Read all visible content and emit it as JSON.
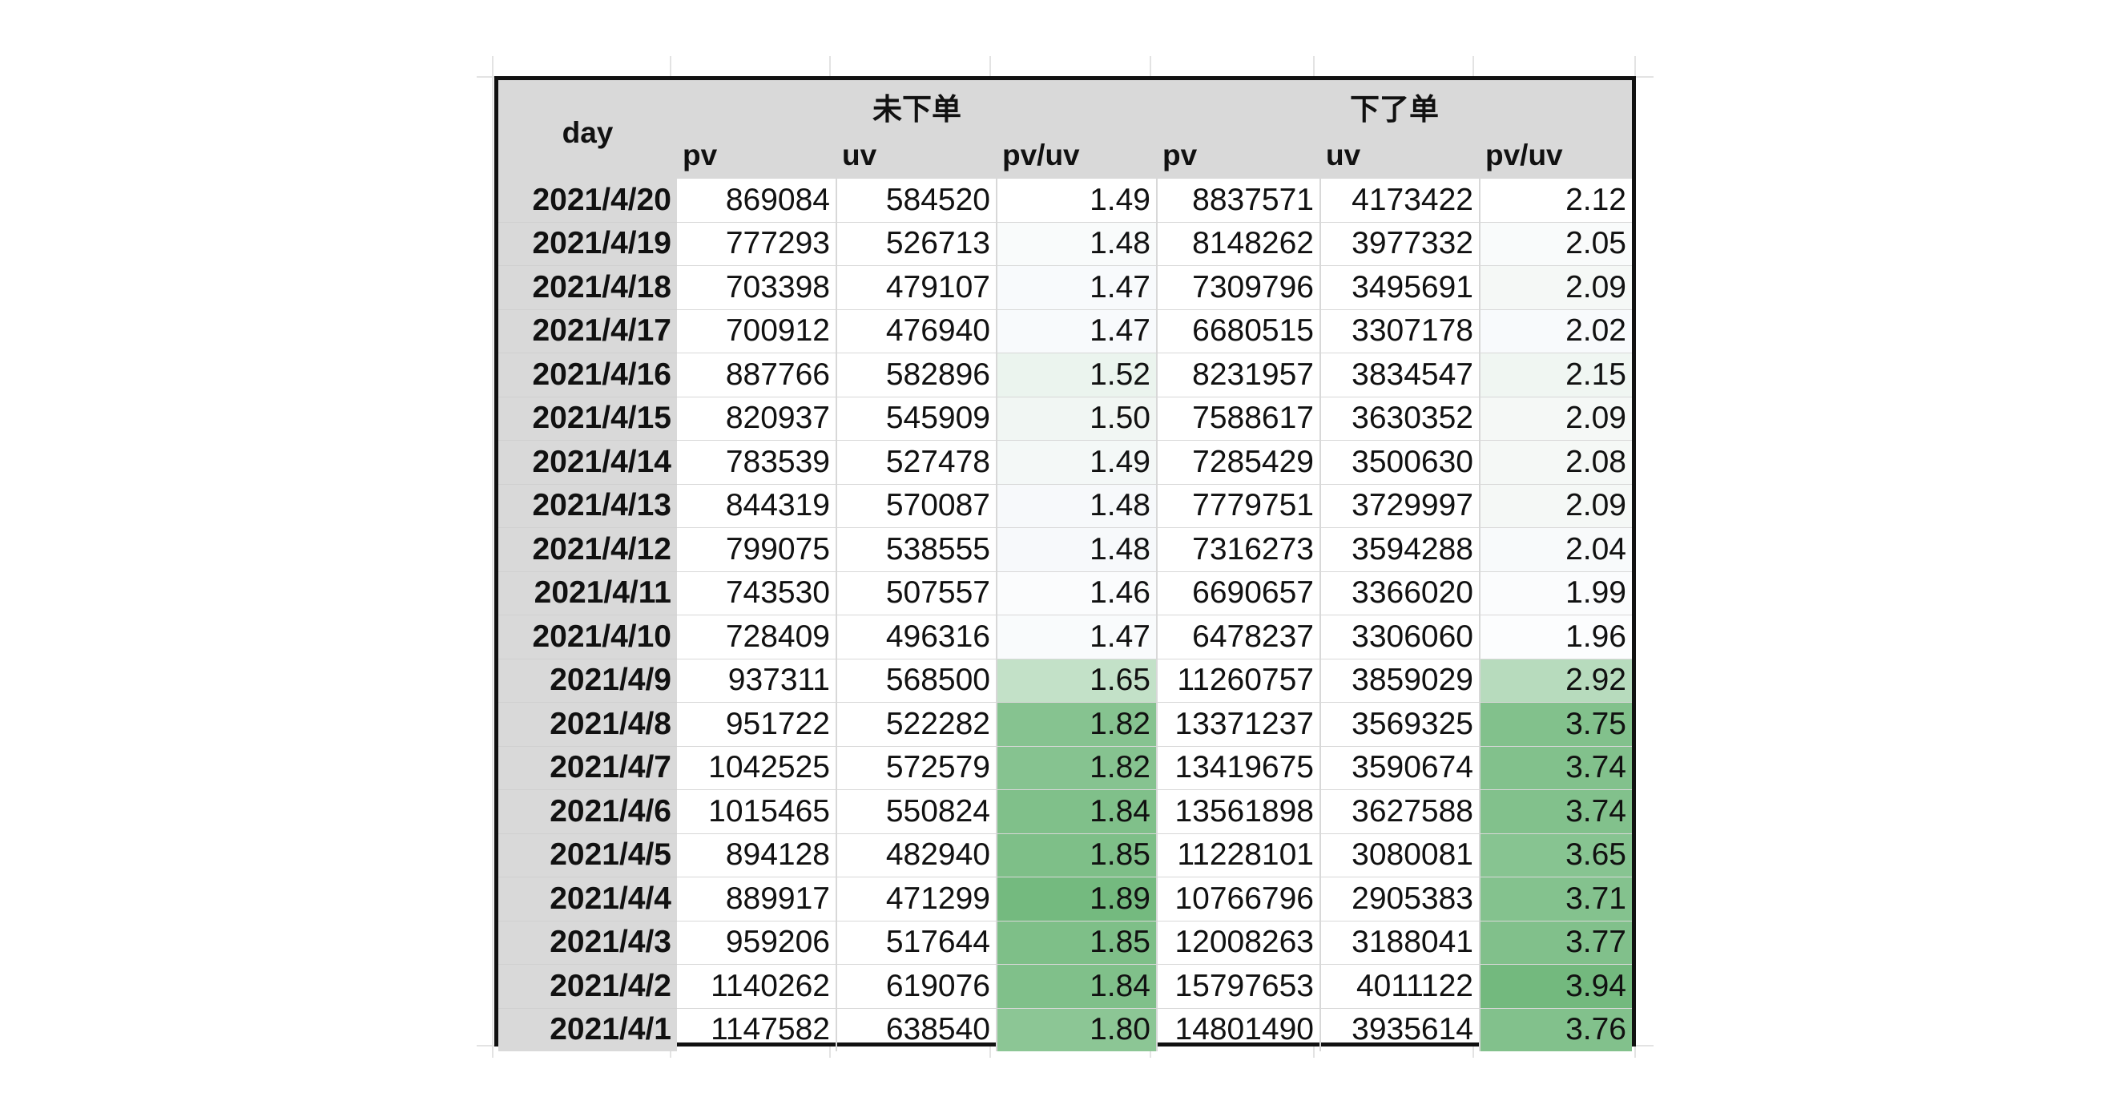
{
  "table": {
    "day_header": "day",
    "group1": "未下单",
    "group2": "下了单",
    "sub_headers": [
      "pv",
      "uv",
      "pv/uv",
      "pv",
      "uv",
      "pv/uv"
    ],
    "rows": [
      {
        "day": "2021/4/20",
        "pv1": "869084",
        "uv1": "584520",
        "r1": "1.49",
        "pv2": "8837571",
        "uv2": "4173422",
        "r2": "2.12",
        "bg1": "#ffffff",
        "bg2": "#ffffff"
      },
      {
        "day": "2021/4/19",
        "pv1": "777293",
        "uv1": "526713",
        "r1": "1.48",
        "pv2": "8148262",
        "uv2": "3977332",
        "r2": "2.05",
        "bg1": "#f9fbfb",
        "bg2": "#f9fbfb"
      },
      {
        "day": "2021/4/18",
        "pv1": "703398",
        "uv1": "479107",
        "r1": "1.47",
        "pv2": "7309796",
        "uv2": "3495691",
        "r2": "2.09",
        "bg1": "#f8fafc",
        "bg2": "#f5f8f6"
      },
      {
        "day": "2021/4/17",
        "pv1": "700912",
        "uv1": "476940",
        "r1": "1.47",
        "pv2": "6680515",
        "uv2": "3307178",
        "r2": "2.02",
        "bg1": "#f8fafc",
        "bg2": "#f8fafc"
      },
      {
        "day": "2021/4/16",
        "pv1": "887766",
        "uv1": "582896",
        "r1": "1.52",
        "pv2": "8231957",
        "uv2": "3834547",
        "r2": "2.15",
        "bg1": "#ebf4ee",
        "bg2": "#f0f6f2"
      },
      {
        "day": "2021/4/15",
        "pv1": "820937",
        "uv1": "545909",
        "r1": "1.50",
        "pv2": "7588617",
        "uv2": "3630352",
        "r2": "2.09",
        "bg1": "#f1f6f3",
        "bg2": "#f5f8f6"
      },
      {
        "day": "2021/4/14",
        "pv1": "783539",
        "uv1": "527478",
        "r1": "1.49",
        "pv2": "7285429",
        "uv2": "3500630",
        "r2": "2.08",
        "bg1": "#f4f8f7",
        "bg2": "#f5f8f6"
      },
      {
        "day": "2021/4/13",
        "pv1": "844319",
        "uv1": "570087",
        "r1": "1.48",
        "pv2": "7779751",
        "uv2": "3729997",
        "r2": "2.09",
        "bg1": "#f7f9fb",
        "bg2": "#f5f8f6"
      },
      {
        "day": "2021/4/12",
        "pv1": "799075",
        "uv1": "538555",
        "r1": "1.48",
        "pv2": "7316273",
        "uv2": "3594288",
        "r2": "2.04",
        "bg1": "#f7f9fb",
        "bg2": "#f8fafb"
      },
      {
        "day": "2021/4/11",
        "pv1": "743530",
        "uv1": "507557",
        "r1": "1.46",
        "pv2": "6690657",
        "uv2": "3366020",
        "r2": "1.99",
        "bg1": "#fbfcfd",
        "bg2": "#fbfcfd"
      },
      {
        "day": "2021/4/10",
        "pv1": "728409",
        "uv1": "496316",
        "r1": "1.47",
        "pv2": "6478237",
        "uv2": "3306060",
        "r2": "1.96",
        "bg1": "#f9fbfc",
        "bg2": "#fcfdfe"
      },
      {
        "day": "2021/4/9",
        "pv1": "937311",
        "uv1": "568500",
        "r1": "1.65",
        "pv2": "11260757",
        "uv2": "3859029",
        "r2": "2.92",
        "bg1": "#c3e1c8",
        "bg2": "#b7dbbd"
      },
      {
        "day": "2021/4/8",
        "pv1": "951722",
        "uv1": "522282",
        "r1": "1.82",
        "pv2": "13371237",
        "uv2": "3569325",
        "r2": "3.75",
        "bg1": "#86c390",
        "bg2": "#82c18c"
      },
      {
        "day": "2021/4/7",
        "pv1": "1042525",
        "uv1": "572579",
        "r1": "1.82",
        "pv2": "13419675",
        "uv2": "3590674",
        "r2": "3.74",
        "bg1": "#86c390",
        "bg2": "#82c18c"
      },
      {
        "day": "2021/4/6",
        "pv1": "1015465",
        "uv1": "550824",
        "r1": "1.84",
        "pv2": "13561898",
        "uv2": "3627588",
        "r2": "3.74",
        "bg1": "#80c08a",
        "bg2": "#82c18c"
      },
      {
        "day": "2021/4/5",
        "pv1": "894128",
        "uv1": "482940",
        "r1": "1.85",
        "pv2": "11228101",
        "uv2": "3080081",
        "r2": "3.65",
        "bg1": "#7ebf88",
        "bg2": "#87c491"
      },
      {
        "day": "2021/4/4",
        "pv1": "889917",
        "uv1": "471299",
        "r1": "1.89",
        "pv2": "10766796",
        "uv2": "2905383",
        "r2": "3.71",
        "bg1": "#74ba7f",
        "bg2": "#84c28e"
      },
      {
        "day": "2021/4/3",
        "pv1": "959206",
        "uv1": "517644",
        "r1": "1.85",
        "pv2": "12008263",
        "uv2": "3188041",
        "r2": "3.77",
        "bg1": "#7ebf88",
        "bg2": "#81c08b"
      },
      {
        "day": "2021/4/2",
        "pv1": "1140262",
        "uv1": "619076",
        "r1": "1.84",
        "pv2": "15797653",
        "uv2": "4011122",
        "r2": "3.94",
        "bg1": "#80c08a",
        "bg2": "#73b97e"
      },
      {
        "day": "2021/4/1",
        "pv1": "1147582",
        "uv1": "638540",
        "r1": "1.80",
        "pv2": "14801490",
        "uv2": "3935614",
        "r2": "3.76",
        "bg1": "#8cc695",
        "bg2": "#82c18c"
      }
    ]
  }
}
